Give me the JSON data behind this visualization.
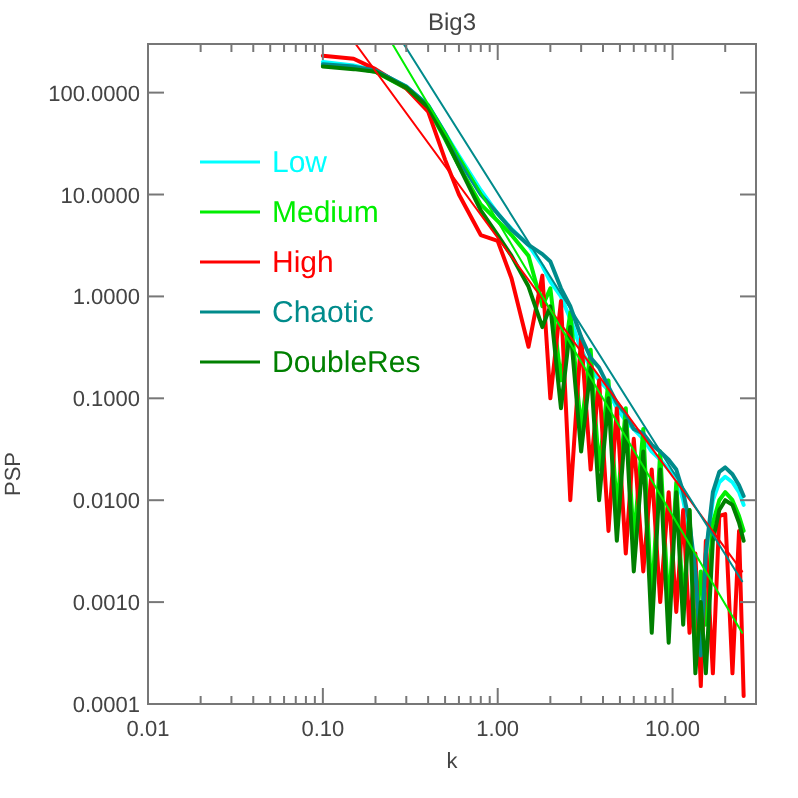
{
  "chart_data": {
    "type": "line",
    "title": "Big3",
    "xlabel": "k",
    "ylabel": "PSP",
    "log": "xy",
    "grid": false,
    "legend": "top left",
    "xlim": [
      0.01,
      30
    ],
    "ylim": [
      0.0001,
      300
    ],
    "xticks": [
      {
        "value": 0.01,
        "label": "0.01"
      },
      {
        "value": 0.02,
        "label": null
      },
      {
        "value": 0.03,
        "label": null
      },
      {
        "value": 0.04,
        "label": null
      },
      {
        "value": 0.05,
        "label": null
      },
      {
        "value": 0.06,
        "label": null
      },
      {
        "value": 0.07,
        "label": null
      },
      {
        "value": 0.08,
        "label": null
      },
      {
        "value": 0.09,
        "label": null
      },
      {
        "value": 0.1,
        "label": "0.10"
      },
      {
        "value": 0.2,
        "label": null
      },
      {
        "value": 0.3,
        "label": null
      },
      {
        "value": 0.4,
        "label": null
      },
      {
        "value": 0.5,
        "label": null
      },
      {
        "value": 0.6,
        "label": null
      },
      {
        "value": 0.7,
        "label": null
      },
      {
        "value": 0.8,
        "label": null
      },
      {
        "value": 0.9,
        "label": null
      },
      {
        "value": 1,
        "label": "1.00"
      },
      {
        "value": 2,
        "label": null
      },
      {
        "value": 3,
        "label": null
      },
      {
        "value": 4,
        "label": null
      },
      {
        "value": 5,
        "label": null
      },
      {
        "value": 6,
        "label": null
      },
      {
        "value": 7,
        "label": null
      },
      {
        "value": 8,
        "label": null
      },
      {
        "value": 9,
        "label": null
      },
      {
        "value": 10,
        "label": "10.00"
      },
      {
        "value": 20,
        "label": null
      }
    ],
    "yticks": [
      {
        "value": 0.0001,
        "label": "0.0001"
      },
      {
        "value": 0.001,
        "label": "0.0010"
      },
      {
        "value": 0.01,
        "label": "0.0100"
      },
      {
        "value": 0.1,
        "label": "0.1000"
      },
      {
        "value": 1,
        "label": "1.0000"
      },
      {
        "value": 10,
        "label": "10.0000"
      },
      {
        "value": 100,
        "label": "100.0000"
      }
    ],
    "x": [
      0.1,
      0.15,
      0.2,
      0.3,
      0.4,
      0.5,
      0.6,
      0.8,
      1.0,
      1.2,
      1.5,
      1.8,
      2.0,
      2.3,
      2.6,
      3.0,
      3.4,
      3.8,
      4.3,
      4.8,
      5.4,
      6.0,
      6.8,
      7.6,
      8.5,
      9.5,
      10.5,
      11.5,
      12.5,
      13.5,
      14.5,
      15.5,
      17,
      18.5,
      20,
      22,
      24,
      25.5
    ],
    "series": [
      {
        "name": "Low",
        "color": "#00ffff",
        "values": [
          200,
          185,
          165,
          115,
          75,
          40,
          24,
          11,
          6.5,
          4.6,
          3.2,
          2.0,
          1.4,
          1.0,
          0.6,
          0.3,
          0.2,
          0.15,
          0.12,
          0.08,
          0.06,
          0.05,
          0.04,
          0.03,
          0.025,
          0.02,
          0.017,
          0.01,
          0.005,
          0.002,
          0.0005,
          0.003,
          0.01,
          0.015,
          0.017,
          0.015,
          0.012,
          0.009
        ]
      },
      {
        "name": "Medium",
        "color": "#00ee00",
        "values": [
          185,
          175,
          160,
          110,
          70,
          35,
          19,
          8,
          5.5,
          4,
          2.5,
          0.8,
          1.2,
          0.15,
          0.7,
          0.05,
          0.3,
          0.02,
          0.15,
          0.008,
          0.08,
          0.004,
          0.05,
          0.001,
          0.03,
          0.0008,
          0.015,
          0.0009,
          0.008,
          0.0004,
          0.002,
          0.0006,
          0.006,
          0.01,
          0.012,
          0.01,
          0.007,
          0.005
        ]
      },
      {
        "name": "High",
        "color": "#ff0000",
        "values": [
          230,
          215,
          170,
          110,
          65,
          22,
          10,
          4,
          3.5,
          1.5,
          0.32,
          1.6,
          0.1,
          0.9,
          0.01,
          0.4,
          0.02,
          0.15,
          0.005,
          0.08,
          0.003,
          0.04,
          0.002,
          0.02,
          0.001,
          0.012,
          0.0008,
          0.008,
          0.0005,
          0.003,
          0.00015,
          0.004,
          0.0002,
          0.007,
          0.0073,
          0.0002,
          0.005,
          0.00012
        ]
      },
      {
        "name": "Chaotic",
        "color": "#008b8b",
        "values": [
          190,
          180,
          165,
          115,
          75,
          40,
          22,
          10,
          6.5,
          4.5,
          3.2,
          2.6,
          2.2,
          1.2,
          0.8,
          0.4,
          0.25,
          0.2,
          0.13,
          0.09,
          0.07,
          0.05,
          0.045,
          0.035,
          0.03,
          0.025,
          0.02,
          0.012,
          0.006,
          0.002,
          0.0003,
          0.003,
          0.012,
          0.019,
          0.021,
          0.018,
          0.014,
          0.011
        ]
      },
      {
        "name": "DoubleRes",
        "color": "#008000",
        "values": [
          180,
          170,
          160,
          112,
          72,
          36,
          19,
          7,
          4,
          2.5,
          1.25,
          0.5,
          0.8,
          0.08,
          0.5,
          0.03,
          0.2,
          0.01,
          0.1,
          0.004,
          0.06,
          0.002,
          0.03,
          0.0005,
          0.02,
          0.0004,
          0.012,
          0.0006,
          0.008,
          0.0002,
          0.001,
          0.0002,
          0.004,
          0.008,
          0.01,
          0.009,
          0.006,
          0.004
        ]
      },
      {
        "type": "line",
        "color": "#ff0000",
        "x": [
          0.154,
          25
        ],
        "values": [
          300,
          0.002
        ]
      },
      {
        "type": "line",
        "color": "#00ee00",
        "x": [
          0.25,
          25
        ],
        "values": [
          300,
          0.0005
        ]
      },
      {
        "type": "line",
        "color": "#008b8b",
        "x": [
          0.29,
          25
        ],
        "values": [
          300,
          0.0016
        ]
      }
    ]
  }
}
